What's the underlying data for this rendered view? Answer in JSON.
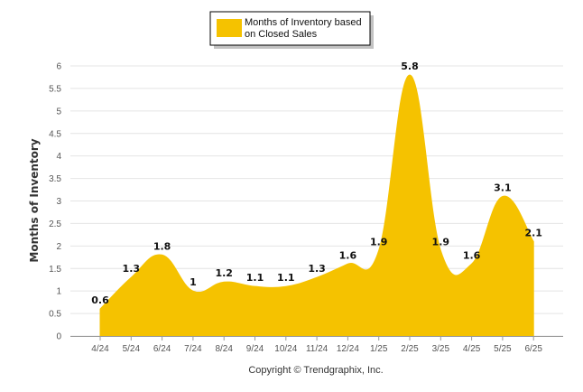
{
  "chart_data": {
    "type": "area",
    "ylabel": "Months of Inventory",
    "xlabel": "",
    "categories": [
      "4/24",
      "5/24",
      "6/24",
      "7/24",
      "8/24",
      "9/24",
      "10/24",
      "11/24",
      "12/24",
      "1/25",
      "2/25",
      "3/25",
      "4/25",
      "5/25",
      "6/25"
    ],
    "series": [
      {
        "name": "Months of Inventory based on Closed Sales",
        "values": [
          0.6,
          1.3,
          1.8,
          1,
          1.2,
          1.1,
          1.1,
          1.3,
          1.6,
          1.9,
          5.8,
          1.9,
          1.6,
          3.1,
          2.1
        ],
        "labels": [
          "0.6",
          "1.3",
          "1.8",
          "1",
          "1.2",
          "1.1",
          "1.1",
          "1.3",
          "1.6",
          "1.9",
          "5.8",
          "1.9",
          "1.6",
          "3.1",
          "2.1"
        ],
        "color": "#F5C200"
      }
    ],
    "ylim": [
      0,
      6
    ],
    "yticks": [
      "0",
      "0.5",
      "1",
      "1.5",
      "2",
      "2.5",
      "3",
      "3.5",
      "4",
      "4.5",
      "5",
      "5.5",
      "6"
    ],
    "grid": true,
    "legend": "top-center",
    "legend_lines": [
      "Months of Inventory based",
      "on Closed Sales"
    ]
  },
  "footer": {
    "copyright": "Copyright © Trendgraphix, Inc."
  },
  "colors": {
    "area": "#F5C200",
    "grid": "#E4E4E4",
    "axis": "#999999"
  }
}
